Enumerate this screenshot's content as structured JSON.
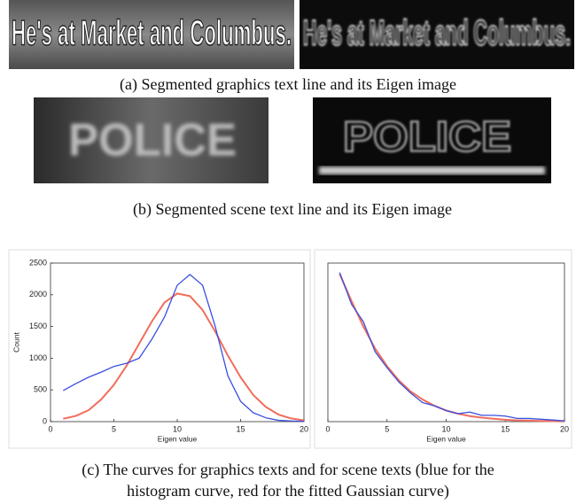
{
  "images": [
    {
      "text": "He's at Market and Columbus."
    },
    {
      "text": "POLICE"
    }
  ],
  "captions": {
    "a": "(a) Segmented graphics text line and its Eigen image",
    "b": "(b) Segmented scene text line and its Eigen image",
    "c": [
      "(c) The curves for graphics texts and for scene texts (blue for the",
      "histogram curve, red for the fitted Gaussian curve)"
    ]
  },
  "chart_data": [
    {
      "type": "line",
      "x_label": "Eigen value",
      "y_label": "Count",
      "x": [
        1,
        2,
        3,
        4,
        5,
        6,
        7,
        8,
        9,
        10,
        11,
        12,
        13,
        14,
        15,
        16,
        17,
        18,
        19,
        20
      ],
      "xlim": [
        0,
        20
      ],
      "xticks": [
        0,
        5,
        10,
        15,
        20
      ],
      "ylim": [
        0,
        2500
      ],
      "yticks": [
        0,
        500,
        1000,
        1500,
        2000,
        2500
      ],
      "series": [
        {
          "color": "#3a4fe0",
          "values": [
            490,
            600,
            700,
            780,
            870,
            920,
            1000,
            1300,
            1650,
            2150,
            2320,
            2150,
            1500,
            720,
            320,
            140,
            60,
            20,
            10,
            5
          ]
        },
        {
          "color": "#f26d5b",
          "values": [
            45,
            90,
            180,
            350,
            580,
            880,
            1230,
            1580,
            1880,
            2020,
            1980,
            1760,
            1420,
            1040,
            700,
            420,
            230,
            110,
            50,
            20
          ]
        }
      ]
    },
    {
      "type": "line",
      "x_label": "Eigen value",
      "x": [
        1,
        2,
        3,
        4,
        5,
        6,
        7,
        8,
        9,
        10,
        11,
        12,
        13,
        14,
        15,
        16,
        17,
        18,
        19,
        20
      ],
      "xlim": [
        0,
        20
      ],
      "xticks": [
        0,
        5,
        10,
        15,
        20
      ],
      "ylim": [
        0,
        1
      ],
      "series": [
        {
          "color": "#3a4fe0",
          "values": [
            0.94,
            0.74,
            0.63,
            0.44,
            0.34,
            0.25,
            0.18,
            0.12,
            0.1,
            0.07,
            0.05,
            0.06,
            0.04,
            0.04,
            0.035,
            0.02,
            0.02,
            0.015,
            0.01,
            0.005
          ]
        },
        {
          "color": "#f26d5b",
          "values": [
            0.93,
            0.76,
            0.6,
            0.46,
            0.35,
            0.26,
            0.19,
            0.14,
            0.1,
            0.07,
            0.05,
            0.035,
            0.025,
            0.018,
            0.012,
            0.008,
            0.006,
            0.004,
            0.003,
            0.002
          ]
        }
      ]
    }
  ]
}
